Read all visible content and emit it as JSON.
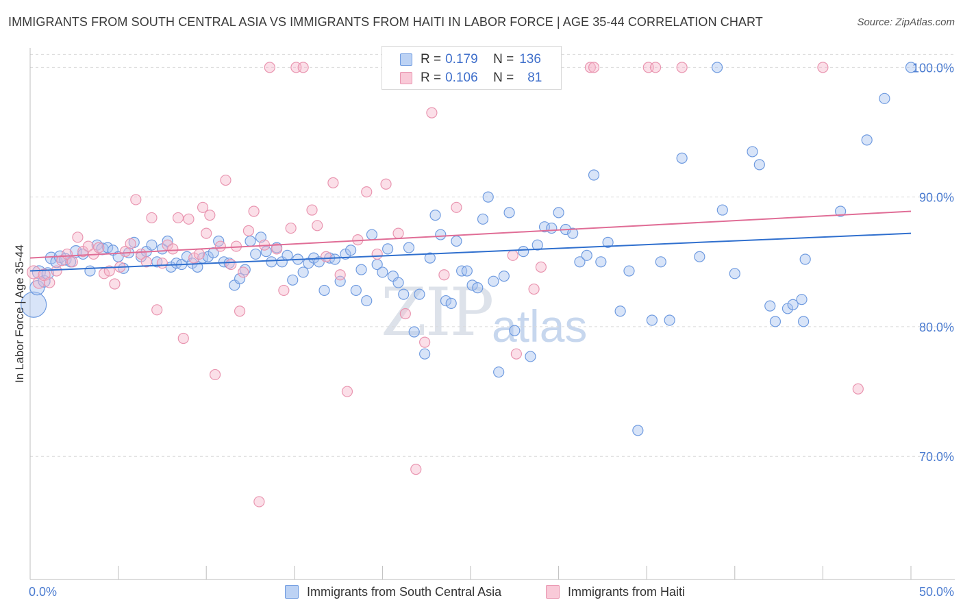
{
  "header": {
    "title": "IMMIGRANTS FROM SOUTH CENTRAL ASIA VS IMMIGRANTS FROM HAITI IN LABOR FORCE | AGE 35-44 CORRELATION CHART",
    "source": "Source: ZipAtlas.com"
  },
  "watermark": {
    "zip": "ZIP",
    "atlas": "atlas"
  },
  "legend": {
    "rows": [
      {
        "r_label": "R = ",
        "r_value": "0.179",
        "n_label": "N = ",
        "n_value": "136"
      },
      {
        "r_label": "R = ",
        "r_value": "0.106",
        "n_label": "N = ",
        "n_value": "81"
      }
    ]
  },
  "colors": {
    "blue_fill": "#a9c4f0",
    "blue_stroke": "#6f9be0",
    "blue_line": "#2f6fce",
    "pink_fill": "#f6b9cc",
    "pink_stroke": "#e995b0",
    "pink_line": "#e06d96",
    "axis_label": "#4a7bd0",
    "grid": "#d9d9d9"
  },
  "chart_data": {
    "type": "scatter",
    "xlabel": "",
    "ylabel": "In Labor Force | Age 35-44",
    "xlim": [
      0,
      50
    ],
    "ylim": [
      60.5,
      101.5
    ],
    "x_tick_labels": [
      {
        "value": 0,
        "label": "0.0%"
      },
      {
        "value": 50,
        "label": "50.0%"
      }
    ],
    "y_tick_labels": [
      {
        "value": 100,
        "label": "100.0%"
      },
      {
        "value": 90,
        "label": "90.0%"
      },
      {
        "value": 80,
        "label": "80.0%"
      },
      {
        "value": 70,
        "label": "70.0%"
      }
    ],
    "grid": "horizontal-dashed",
    "legend_position": "top-center",
    "series": [
      {
        "name": "Immigrants from South Central Asia",
        "color": "#a9c4f0",
        "trend": [
          [
            0,
            84.3
          ],
          [
            50,
            87.2
          ]
        ],
        "points": [
          [
            0.2,
            81.7,
            34
          ],
          [
            0.4,
            83.0,
            18
          ],
          [
            0.5,
            84.2,
            16
          ],
          [
            0.8,
            83.5,
            14
          ],
          [
            1.0,
            84.1,
            14
          ],
          [
            1.2,
            85.3,
            14
          ],
          [
            1.5,
            85.0,
            14
          ],
          [
            1.7,
            85.4,
            14
          ],
          [
            2.0,
            85.2,
            14
          ],
          [
            2.3,
            85.0,
            12
          ],
          [
            2.6,
            85.8,
            14
          ],
          [
            3.0,
            85.6,
            12
          ],
          [
            3.4,
            84.3,
            12
          ],
          [
            3.8,
            86.3,
            12
          ],
          [
            4.1,
            86.0,
            14
          ],
          [
            4.4,
            86.1,
            12
          ],
          [
            4.7,
            85.9,
            12
          ],
          [
            5.0,
            85.4,
            12
          ],
          [
            5.3,
            84.5,
            12
          ],
          [
            5.6,
            85.7,
            12
          ],
          [
            5.9,
            86.5,
            12
          ],
          [
            6.3,
            85.4,
            12
          ],
          [
            6.6,
            85.8,
            12
          ],
          [
            6.9,
            86.3,
            12
          ],
          [
            7.2,
            85.0,
            12
          ],
          [
            7.5,
            86.0,
            12
          ],
          [
            7.8,
            86.6,
            12
          ],
          [
            8.0,
            84.6,
            12
          ],
          [
            8.3,
            84.9,
            12
          ],
          [
            8.6,
            84.8,
            12
          ],
          [
            8.9,
            85.4,
            12
          ],
          [
            9.2,
            84.9,
            12
          ],
          [
            9.5,
            84.6,
            12
          ],
          [
            9.8,
            85.3,
            12
          ],
          [
            10.1,
            85.4,
            12
          ],
          [
            10.4,
            85.7,
            12
          ],
          [
            10.7,
            86.6,
            12
          ],
          [
            11.0,
            85.0,
            12
          ],
          [
            11.3,
            84.9,
            12
          ],
          [
            11.6,
            83.2,
            12
          ],
          [
            11.9,
            83.7,
            12
          ],
          [
            12.2,
            84.4,
            12
          ],
          [
            12.5,
            86.6,
            12
          ],
          [
            12.8,
            85.6,
            12
          ],
          [
            13.1,
            86.9,
            12
          ],
          [
            13.4,
            85.8,
            12
          ],
          [
            13.7,
            85.0,
            12
          ],
          [
            14.0,
            86.1,
            12
          ],
          [
            14.3,
            85.0,
            12
          ],
          [
            14.6,
            85.5,
            12
          ],
          [
            14.9,
            83.6,
            12
          ],
          [
            15.2,
            85.2,
            12
          ],
          [
            15.5,
            84.2,
            12
          ],
          [
            15.8,
            84.9,
            12
          ],
          [
            16.1,
            85.3,
            12
          ],
          [
            16.4,
            85.0,
            12
          ],
          [
            16.7,
            82.8,
            12
          ],
          [
            17.0,
            85.3,
            12
          ],
          [
            17.3,
            85.2,
            12
          ],
          [
            17.6,
            83.5,
            12
          ],
          [
            17.9,
            85.6,
            12
          ],
          [
            18.2,
            85.9,
            12
          ],
          [
            18.5,
            82.8,
            12
          ],
          [
            18.8,
            84.4,
            12
          ],
          [
            19.1,
            82.0,
            12
          ],
          [
            19.4,
            87.1,
            12
          ],
          [
            19.7,
            84.8,
            12
          ],
          [
            20.0,
            84.2,
            12
          ],
          [
            20.3,
            86.0,
            12
          ],
          [
            20.6,
            83.9,
            12
          ],
          [
            20.9,
            83.4,
            12
          ],
          [
            21.2,
            82.5,
            12
          ],
          [
            21.5,
            86.1,
            12
          ],
          [
            21.8,
            79.6,
            12
          ],
          [
            22.1,
            82.5,
            12
          ],
          [
            22.4,
            77.9,
            12
          ],
          [
            22.7,
            85.3,
            12
          ],
          [
            23.0,
            88.6,
            12
          ],
          [
            23.3,
            87.1,
            12
          ],
          [
            23.6,
            82.0,
            12
          ],
          [
            23.9,
            81.8,
            12
          ],
          [
            24.2,
            86.6,
            12
          ],
          [
            24.5,
            84.3,
            12
          ],
          [
            24.8,
            84.3,
            12
          ],
          [
            25.1,
            83.2,
            12
          ],
          [
            25.4,
            83.0,
            12
          ],
          [
            25.7,
            88.3,
            12
          ],
          [
            26.0,
            90.0,
            12
          ],
          [
            26.3,
            83.5,
            12
          ],
          [
            26.6,
            76.5,
            12
          ],
          [
            26.9,
            83.9,
            12
          ],
          [
            27.2,
            88.8,
            12
          ],
          [
            27.5,
            79.7,
            12
          ],
          [
            28.0,
            85.8,
            12
          ],
          [
            28.4,
            77.7,
            12
          ],
          [
            28.8,
            86.3,
            12
          ],
          [
            29.2,
            87.7,
            12
          ],
          [
            29.6,
            87.6,
            12
          ],
          [
            30.0,
            88.8,
            12
          ],
          [
            30.4,
            87.5,
            12
          ],
          [
            30.8,
            87.2,
            12
          ],
          [
            31.2,
            85.0,
            12
          ],
          [
            31.6,
            85.5,
            12
          ],
          [
            32.0,
            91.7,
            12
          ],
          [
            32.4,
            85.0,
            12
          ],
          [
            32.8,
            86.5,
            12
          ],
          [
            33.5,
            81.2,
            12
          ],
          [
            34.0,
            84.3,
            12
          ],
          [
            34.5,
            72.0,
            12
          ],
          [
            35.3,
            80.5,
            12
          ],
          [
            35.8,
            85.0,
            12
          ],
          [
            36.3,
            80.5,
            12
          ],
          [
            37.0,
            93.0,
            12
          ],
          [
            38.0,
            85.4,
            12
          ],
          [
            39.0,
            100.0,
            12
          ],
          [
            39.3,
            89.0,
            12
          ],
          [
            40.0,
            84.1,
            12
          ],
          [
            41.0,
            93.5,
            12
          ],
          [
            41.4,
            92.5,
            12
          ],
          [
            42.0,
            81.6,
            12
          ],
          [
            42.3,
            80.4,
            12
          ],
          [
            43.0,
            81.4,
            12
          ],
          [
            43.3,
            81.7,
            12
          ],
          [
            43.8,
            82.1,
            12
          ],
          [
            43.9,
            80.4,
            12
          ],
          [
            44.0,
            85.2,
            12
          ],
          [
            46.0,
            88.9,
            12
          ],
          [
            47.5,
            94.4,
            12
          ],
          [
            48.5,
            97.6,
            12
          ],
          [
            50.0,
            100.0,
            12
          ]
        ]
      },
      {
        "name": "Immigrants from Haiti",
        "color": "#f6b9cc",
        "trend": [
          [
            0,
            85.3
          ],
          [
            50,
            88.9
          ]
        ],
        "points": [
          [
            0.2,
            84.2,
            16
          ],
          [
            0.5,
            83.4,
            14
          ],
          [
            0.8,
            84.0,
            14
          ],
          [
            1.1,
            83.4,
            12
          ],
          [
            1.5,
            84.3,
            12
          ],
          [
            1.8,
            85.1,
            12
          ],
          [
            2.1,
            85.6,
            12
          ],
          [
            2.4,
            85.0,
            12
          ],
          [
            2.7,
            86.9,
            12
          ],
          [
            3.0,
            85.8,
            12
          ],
          [
            3.3,
            86.2,
            12
          ],
          [
            3.6,
            85.6,
            12
          ],
          [
            3.9,
            86.1,
            12
          ],
          [
            4.2,
            84.1,
            12
          ],
          [
            4.5,
            84.3,
            12
          ],
          [
            4.8,
            83.3,
            12
          ],
          [
            5.1,
            84.6,
            12
          ],
          [
            5.4,
            85.8,
            12
          ],
          [
            5.7,
            86.4,
            12
          ],
          [
            6.0,
            89.8,
            12
          ],
          [
            6.3,
            85.6,
            12
          ],
          [
            6.6,
            85.0,
            12
          ],
          [
            6.9,
            88.4,
            12
          ],
          [
            7.2,
            81.3,
            12
          ],
          [
            7.5,
            84.9,
            12
          ],
          [
            7.8,
            86.3,
            12
          ],
          [
            8.1,
            86.0,
            12
          ],
          [
            8.4,
            88.4,
            12
          ],
          [
            8.7,
            79.1,
            12
          ],
          [
            9.0,
            88.3,
            12
          ],
          [
            9.3,
            85.3,
            12
          ],
          [
            9.6,
            85.6,
            12
          ],
          [
            9.8,
            89.2,
            12
          ],
          [
            10.0,
            87.2,
            12
          ],
          [
            10.2,
            88.6,
            12
          ],
          [
            10.5,
            76.3,
            12
          ],
          [
            10.8,
            86.2,
            12
          ],
          [
            11.1,
            91.3,
            12
          ],
          [
            11.4,
            84.8,
            12
          ],
          [
            11.7,
            86.2,
            12
          ],
          [
            11.9,
            81.2,
            12
          ],
          [
            12.1,
            84.2,
            12
          ],
          [
            12.4,
            87.4,
            12
          ],
          [
            12.7,
            88.9,
            12
          ],
          [
            13.0,
            66.5,
            12
          ],
          [
            13.3,
            86.3,
            12
          ],
          [
            13.6,
            100.0,
            12
          ],
          [
            14.0,
            86.0,
            12
          ],
          [
            14.4,
            82.8,
            12
          ],
          [
            14.8,
            87.6,
            12
          ],
          [
            15.1,
            100.0,
            12
          ],
          [
            15.5,
            100.0,
            12
          ],
          [
            16.0,
            89.0,
            12
          ],
          [
            16.3,
            87.8,
            12
          ],
          [
            16.8,
            85.4,
            12
          ],
          [
            17.2,
            91.1,
            12
          ],
          [
            17.6,
            84.0,
            12
          ],
          [
            18.0,
            75.0,
            12
          ],
          [
            18.6,
            86.7,
            12
          ],
          [
            19.1,
            90.4,
            12
          ],
          [
            19.7,
            85.6,
            12
          ],
          [
            20.2,
            91.0,
            12
          ],
          [
            20.9,
            87.2,
            12
          ],
          [
            21.3,
            81.0,
            12
          ],
          [
            21.9,
            69.0,
            12
          ],
          [
            22.4,
            78.8,
            12
          ],
          [
            22.8,
            96.5,
            12
          ],
          [
            23.5,
            84.0,
            12
          ],
          [
            24.2,
            89.2,
            12
          ],
          [
            26.0,
            100.0,
            12
          ],
          [
            27.4,
            85.5,
            12
          ],
          [
            27.6,
            77.9,
            12
          ],
          [
            28.6,
            82.9,
            12
          ],
          [
            29.0,
            84.6,
            12
          ],
          [
            31.8,
            100.0,
            12
          ],
          [
            32.0,
            100.0,
            12
          ],
          [
            35.1,
            100.0,
            12
          ],
          [
            35.5,
            100.0,
            12
          ],
          [
            37.0,
            100.0,
            12
          ],
          [
            45.0,
            100.0,
            12
          ],
          [
            47.0,
            75.2,
            12
          ]
        ]
      }
    ]
  },
  "bottom_legend": {
    "items": [
      {
        "label": "Immigrants from South Central Asia"
      },
      {
        "label": "Immigrants from Haiti"
      }
    ]
  }
}
